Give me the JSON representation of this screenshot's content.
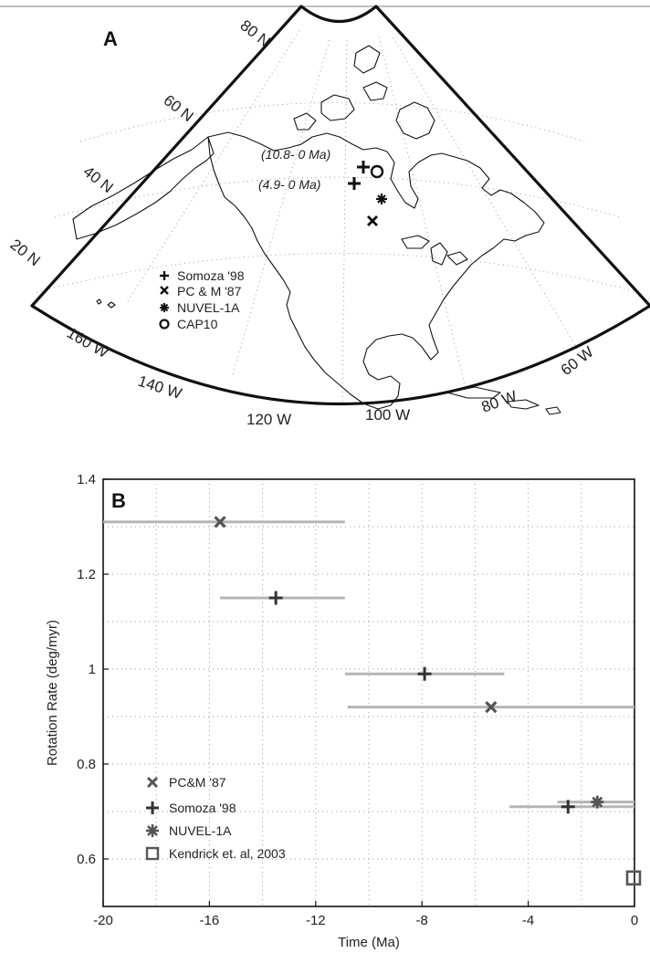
{
  "map_panel": {
    "panel_label": "A",
    "lat_labels": [
      "80 N",
      "60 N",
      "40 N",
      "20 N"
    ],
    "lon_labels": [
      "160 W",
      "140 W",
      "120 W",
      "100 W",
      "80 W",
      "60 W"
    ],
    "annotations": [
      "(10.8- 0 Ma)",
      "(4.9- 0 Ma)"
    ],
    "legend": [
      {
        "symbol": "plus",
        "label": "Somoza '98"
      },
      {
        "symbol": "x",
        "label": "PC & M '87"
      },
      {
        "symbol": "asterisk",
        "label": "NUVEL-1A"
      },
      {
        "symbol": "circle",
        "label": "CAP10"
      }
    ]
  },
  "chart_data": {
    "type": "scatter",
    "panel_label": "B",
    "xlabel": "Time (Ma)",
    "ylabel": "Rotation Rate (deg/myr)",
    "xlim": [
      -20,
      0
    ],
    "ylim": [
      0.5,
      1.4
    ],
    "xticks": [
      -20,
      -16,
      -12,
      -8,
      -4,
      0
    ],
    "xtick_labels": [
      "-20",
      "-16",
      "-12",
      "-8",
      "-4",
      "0"
    ],
    "yticks": [
      0.6,
      0.8,
      1.0,
      1.2,
      1.4
    ],
    "ytick_labels": [
      "0.6",
      "0.8",
      "1",
      "1.2",
      "1.4"
    ],
    "grid": true,
    "legend_position": "bottom-left",
    "series": [
      {
        "name": "PC&M '87",
        "marker": "x",
        "color": "#555555",
        "points": [
          {
            "x": -15.6,
            "y": 1.31,
            "xmin": -20,
            "xmax": -10.9
          },
          {
            "x": -5.4,
            "y": 0.92,
            "xmin": -10.8,
            "xmax": 0
          }
        ]
      },
      {
        "name": "Somoza '98",
        "marker": "plus",
        "color": "#333333",
        "points": [
          {
            "x": -13.5,
            "y": 1.15,
            "xmin": -15.6,
            "xmax": -10.9
          },
          {
            "x": -7.9,
            "y": 0.99,
            "xmin": -10.9,
            "xmax": -4.9
          },
          {
            "x": -2.5,
            "y": 0.71,
            "xmin": -4.7,
            "xmax": 0
          }
        ]
      },
      {
        "name": "NUVEL-1A",
        "marker": "asterisk",
        "color": "#555555",
        "points": [
          {
            "x": -1.4,
            "y": 0.72,
            "xmin": -2.9,
            "xmax": 0
          }
        ]
      },
      {
        "name": "Kendrick et. al, 2003",
        "marker": "square",
        "color": "#555555",
        "points": [
          {
            "x": 0,
            "y": 0.56
          }
        ]
      }
    ]
  }
}
